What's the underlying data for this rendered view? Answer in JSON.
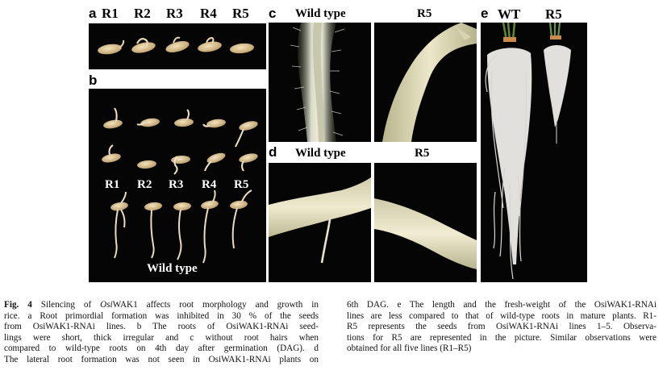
{
  "panel_a": {
    "letter": "a",
    "line_labels": [
      "R1",
      "R2",
      "R3",
      "R4",
      "R5"
    ]
  },
  "panel_b": {
    "letter": "b",
    "line_labels": [
      "R1",
      "R2",
      "R3",
      "R4",
      "R5"
    ],
    "control_label": "Wild type"
  },
  "panel_c": {
    "letter": "c",
    "left_label": "Wild type",
    "right_label": "R5"
  },
  "panel_d": {
    "letter": "d",
    "left_label": "Wild type",
    "right_label": "R5"
  },
  "panel_e": {
    "letter": "e",
    "left_label": "WT",
    "right_label": "R5"
  },
  "caption": {
    "fig_label": "Fig. 4",
    "col1": [
      "Silencing of OsiWAK1 affects root morphology and growth in",
      "rice. a Root primordial formation was inhibited in 30 % of the seeds",
      "from OsiWAK1-RNAi lines. b The roots of OsiWAK1-RNAi seed-",
      "lings were short, thick irregular and c without root hairs when",
      "compared to wild-type roots on 4th day after germination (DAG). d",
      "The lateral root formation was not seen in OsiWAK1-RNAi plants on"
    ],
    "col2": [
      "6th DAG. e The length and the fresh-weight of the OsiWAK1-RNAi",
      "lines are less compared to that of wild-type roots in mature plants. R1-",
      "R5 represents the seeds from OsiWAK1-RNAi lines 1–5. Observa-",
      "tions for R5 are represented in the picture. Similar observations were",
      "obtained for all five lines (R1–R5)"
    ]
  }
}
